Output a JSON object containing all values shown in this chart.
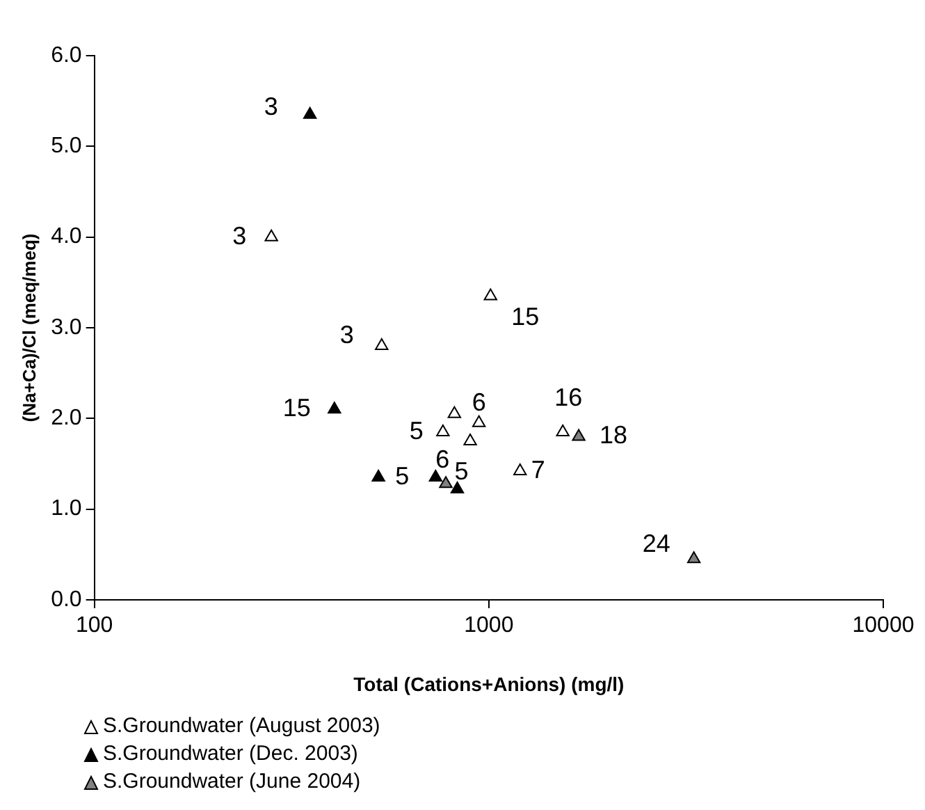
{
  "chart_data": {
    "type": "scatter",
    "xlabel": "Total (Cations+Anions) (mg/l)",
    "ylabel": "(Na+Ca)/Cl (meq/meq)",
    "log": "x",
    "xlim": [
      100,
      10000
    ],
    "xticks": [
      100,
      1000,
      10000
    ],
    "ylim": [
      0,
      6
    ],
    "yticks": [
      {
        "value": 0,
        "label": "0.0"
      },
      {
        "value": 1,
        "label": "1.0"
      },
      {
        "value": 2,
        "label": "2.0"
      },
      {
        "value": 3,
        "label": "3.0"
      },
      {
        "value": 4,
        "label": "4.0"
      },
      {
        "value": 5,
        "label": "5.0"
      },
      {
        "value": 6,
        "label": "6.0"
      }
    ],
    "grid": false,
    "legend": "bottom left",
    "marker": "triangle",
    "series": [
      {
        "name": "S.Groundwater (August 2003)",
        "color": "#ffffff",
        "x": [
          281,
          535,
          1010,
          818,
          765,
          944,
          897,
          1200,
          1540
        ],
        "values": [
          4.0,
          2.8,
          3.35,
          2.05,
          1.85,
          1.95,
          1.75,
          1.42,
          1.85
        ]
      },
      {
        "name": "S.Groundwater (Dec. 2003)",
        "color": "#000000",
        "x": [
          352,
          406,
          525,
          733,
          832
        ],
        "values": [
          5.35,
          2.1,
          1.35,
          1.35,
          1.22
        ]
      },
      {
        "name": "S.Groundwater (June 2004)",
        "color": "#808080",
        "x": [
          778,
          1690,
          3310
        ],
        "values": [
          1.28,
          1.8,
          0.45
        ]
      }
    ],
    "annotations": [
      {
        "text": "3",
        "x": 352,
        "y": 5.35
      },
      {
        "text": "3",
        "x": 281,
        "y": 4.0
      },
      {
        "text": "3",
        "x": 535,
        "y": 2.8
      },
      {
        "text": "15",
        "x": 1010,
        "y": 3.35
      },
      {
        "text": "15",
        "x": 406,
        "y": 2.1
      },
      {
        "text": "5",
        "x": 765,
        "y": 1.85
      },
      {
        "text": "6",
        "x": 944,
        "y": 1.95
      },
      {
        "text": "5",
        "x": 525,
        "y": 1.35
      },
      {
        "text": "6",
        "x": 733,
        "y": 1.35
      },
      {
        "text": "5",
        "x": 832,
        "y": 1.22
      },
      {
        "text": "7",
        "x": 1200,
        "y": 1.42
      },
      {
        "text": "16",
        "x": 1540,
        "y": 1.85
      },
      {
        "text": "18",
        "x": 1690,
        "y": 1.8
      },
      {
        "text": "24",
        "x": 3310,
        "y": 0.45
      }
    ]
  }
}
